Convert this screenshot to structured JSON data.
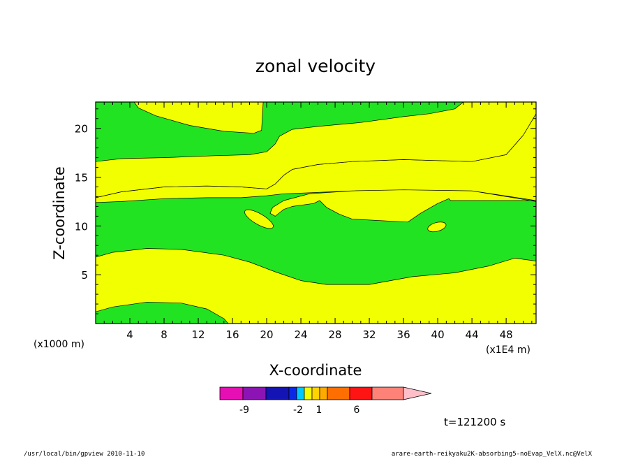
{
  "chart_data": {
    "type": "contour",
    "title": "zonal velocity",
    "xlabel": "X-coordinate",
    "ylabel": "Z-coordinate",
    "x_scale_label": "(x1E4 m)",
    "y_scale_label": "(x1000 m)",
    "xlim": [
      0,
      51.5
    ],
    "ylim": [
      0,
      22.7
    ],
    "x_ticks": [
      4,
      8,
      12,
      16,
      20,
      24,
      28,
      32,
      36,
      40,
      44,
      48
    ],
    "x_tick_labels": [
      "4",
      "8",
      "12",
      "16",
      "20",
      "24",
      "28",
      "32",
      "36",
      "40",
      "44",
      "48"
    ],
    "y_ticks": [
      5,
      10,
      15,
      20
    ],
    "y_tick_labels": [
      "5",
      "10",
      "15",
      "20"
    ],
    "fill_colors": {
      "positive": "#f2ff00",
      "negative": "#22e322"
    },
    "regions": [
      {
        "name": "yellow-lower",
        "sign": "positive",
        "points": [
          [
            0,
            1.2
          ],
          [
            2,
            1.7
          ],
          [
            6,
            2.2
          ],
          [
            10,
            2.1
          ],
          [
            13,
            1.5
          ],
          [
            15,
            0.5
          ],
          [
            15.5,
            0
          ],
          [
            51.5,
            0
          ],
          [
            51.5,
            6.4
          ],
          [
            49,
            6.7
          ],
          [
            46,
            5.9
          ],
          [
            42,
            5.2
          ],
          [
            37,
            4.8
          ],
          [
            32,
            4.0
          ],
          [
            27,
            4.0
          ],
          [
            24,
            4.4
          ],
          [
            21,
            5.3
          ],
          [
            18,
            6.3
          ],
          [
            15,
            7.0
          ],
          [
            10,
            7.6
          ],
          [
            6,
            7.7
          ],
          [
            2,
            7.3
          ],
          [
            0,
            6.8
          ]
        ]
      },
      {
        "name": "yellow-middle",
        "sign": "positive",
        "points": [
          [
            0,
            12.9
          ],
          [
            3,
            13.5
          ],
          [
            8,
            14.0
          ],
          [
            13,
            14.1
          ],
          [
            17,
            14.0
          ],
          [
            20,
            13.8
          ],
          [
            21,
            14.3
          ],
          [
            22,
            15.2
          ],
          [
            23,
            15.8
          ],
          [
            26,
            16.3
          ],
          [
            30,
            16.6
          ],
          [
            36,
            16.8
          ],
          [
            44,
            16.6
          ],
          [
            48,
            17.3
          ],
          [
            50,
            19.3
          ],
          [
            51.5,
            21.5
          ],
          [
            51.5,
            12.6
          ],
          [
            41.5,
            12.6
          ],
          [
            41.3,
            12.8
          ],
          [
            40,
            12.3
          ],
          [
            38,
            11.3
          ],
          [
            36.5,
            10.4
          ],
          [
            30,
            10.7
          ],
          [
            28.5,
            11.2
          ],
          [
            27,
            11.9
          ],
          [
            26.2,
            12.6
          ],
          [
            25.5,
            12.3
          ],
          [
            23,
            12.0
          ],
          [
            22,
            11.7
          ],
          [
            21,
            11.0
          ],
          [
            20.4,
            11.3
          ],
          [
            20.7,
            11.9
          ],
          [
            22,
            12.6
          ],
          [
            25,
            13.3
          ],
          [
            30,
            13.6
          ],
          [
            36,
            13.7
          ],
          [
            44,
            13.6
          ],
          [
            51.5,
            12.5
          ],
          [
            51.5,
            12.6
          ],
          [
            44,
            13.6
          ],
          [
            36,
            13.7
          ],
          [
            30,
            13.6
          ],
          [
            25,
            13.4
          ],
          [
            22,
            13.3
          ],
          [
            20,
            13.1
          ],
          [
            17,
            12.9
          ],
          [
            13,
            12.9
          ],
          [
            8,
            12.8
          ],
          [
            3,
            12.5
          ],
          [
            0,
            12.4
          ]
        ]
      },
      {
        "name": "yellow-upper-left",
        "sign": "positive",
        "points": [
          [
            0,
            16.6
          ],
          [
            3,
            16.9
          ],
          [
            8,
            17.0
          ],
          [
            14,
            17.2
          ],
          [
            18,
            17.3
          ],
          [
            20,
            17.6
          ],
          [
            21,
            18.4
          ],
          [
            21.5,
            19.2
          ],
          [
            23,
            19.9
          ],
          [
            26,
            20.2
          ],
          [
            31,
            20.6
          ],
          [
            36,
            21.2
          ],
          [
            39,
            21.5
          ],
          [
            42,
            22.0
          ],
          [
            43,
            22.7
          ],
          [
            51.5,
            22.7
          ],
          [
            51.5,
            21.5
          ],
          [
            50,
            19.3
          ],
          [
            48,
            17.3
          ],
          [
            44,
            16.6
          ],
          [
            36,
            16.8
          ],
          [
            30,
            16.6
          ],
          [
            26,
            16.3
          ],
          [
            23,
            15.8
          ],
          [
            22,
            15.2
          ],
          [
            21,
            14.3
          ],
          [
            20,
            13.8
          ],
          [
            17,
            14.0
          ],
          [
            13,
            14.1
          ],
          [
            8,
            14.0
          ],
          [
            3,
            13.5
          ],
          [
            0,
            12.9
          ]
        ]
      },
      {
        "name": "yellow-top-band",
        "sign": "positive",
        "points": [
          [
            4.5,
            22.7
          ],
          [
            19.6,
            22.7
          ],
          [
            19.4,
            19.8
          ],
          [
            18.5,
            19.5
          ],
          [
            15,
            19.7
          ],
          [
            11,
            20.3
          ],
          [
            7,
            21.3
          ],
          [
            5,
            22.1
          ]
        ]
      }
    ],
    "colorbar": {
      "colors": [
        "#e60fb4",
        "#8c14b4",
        "#1414b4",
        "#0a28e6",
        "#00c8ff",
        "#f2ff00",
        "#ffd200",
        "#ffaa00",
        "#ff6e00",
        "#ff1414",
        "#ff8278",
        "#ffbec8"
      ],
      "tick_labels": [
        "-9",
        "-2",
        "1",
        "6"
      ]
    },
    "time_label": "t=121200 s"
  },
  "footer": {
    "left": "/usr/local/bin/gpview   2010-11-10",
    "right": "arare-earth-reikyaku2K-absorbing5-noEvap_VelX.nc@VelX"
  }
}
